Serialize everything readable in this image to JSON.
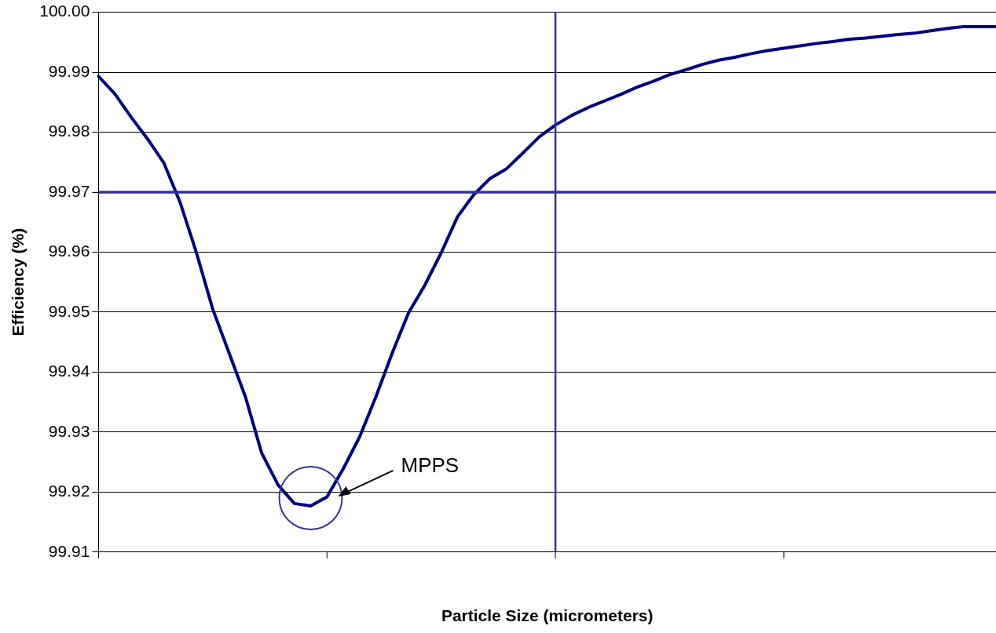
{
  "chart_data": {
    "type": "line",
    "xlabel": "Particle Size (micrometers)",
    "ylabel": "Efficiency (%)",
    "categories": [
      null,
      null,
      null,
      null,
      null,
      null,
      null,
      null,
      null,
      null,
      null,
      null,
      null,
      null,
      null,
      null,
      null,
      null,
      null,
      null,
      null,
      null,
      null,
      null,
      null,
      null,
      null,
      null,
      null,
      null,
      null,
      null,
      null,
      null,
      null,
      null,
      null,
      null,
      null,
      null,
      null,
      null,
      null,
      null,
      null,
      null,
      null,
      null,
      null,
      null,
      null,
      null,
      null,
      null,
      null,
      null
    ],
    "series": [
      {
        "color": "#000080",
        "values": [
          99.9893,
          99.9864,
          99.9825,
          99.9789,
          99.9749,
          99.9683,
          99.9599,
          99.9505,
          99.9432,
          99.9359,
          99.9265,
          99.9212,
          99.9181,
          99.9177,
          99.9192,
          99.9239,
          99.9292,
          99.9359,
          99.9432,
          99.9499,
          99.9545,
          99.9599,
          99.9659,
          99.9696,
          99.9723,
          99.9739,
          99.9765,
          99.9792,
          99.9812,
          99.9828,
          99.9841,
          99.9852,
          99.9863,
          99.9875,
          99.9885,
          99.9896,
          99.9904,
          99.9913,
          99.992,
          99.9925,
          99.9931,
          99.9936,
          99.994,
          99.9944,
          99.9948,
          99.9951,
          99.9955,
          99.9957,
          99.996,
          99.9963,
          99.9965,
          99.9969,
          99.9973,
          99.9976,
          99.9976,
          99.9976
        ]
      }
    ],
    "ylim": [
      99.91,
      100.0
    ],
    "yticks": [
      {
        "value": 99.91,
        "label": "99.91"
      },
      {
        "value": 99.92,
        "label": "99.92"
      },
      {
        "value": 99.93,
        "label": "99.93"
      },
      {
        "value": 99.94,
        "label": "99.94"
      },
      {
        "value": 99.95,
        "label": "99.95"
      },
      {
        "value": 99.96,
        "label": "99.96"
      },
      {
        "value": 99.97,
        "label": "99.97"
      },
      {
        "value": 99.98,
        "label": "99.98"
      },
      {
        "value": 99.99,
        "label": "99.99"
      },
      {
        "value": 100.0,
        "label": "100.00"
      }
    ],
    "grid": "y",
    "tick_labels": "y",
    "legend": false,
    "marker": "none",
    "line_style": "solid",
    "ref_lines": [
      {
        "axis": "y",
        "value": 99.97,
        "color": "#333399"
      }
    ],
    "annotations": [
      "MPPS"
    ]
  }
}
